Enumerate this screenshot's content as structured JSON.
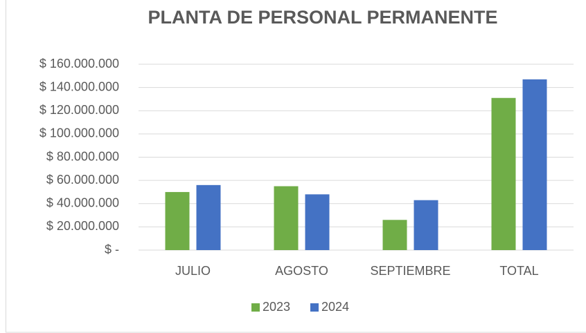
{
  "chart_data": {
    "type": "bar",
    "title": "PLANTA DE PERSONAL PERMANENTE",
    "categories": [
      "JULIO",
      "AGOSTO",
      "SEPTIEMBRE",
      "TOTAL"
    ],
    "series": [
      {
        "name": "2023",
        "color": "#70ad47",
        "values": [
          50000000,
          55000000,
          26000000,
          131000000
        ]
      },
      {
        "name": "2024",
        "color": "#4472c4",
        "values": [
          56000000,
          48000000,
          43000000,
          147000000
        ]
      }
    ],
    "ylim": [
      0,
      160000000
    ],
    "yticks": [
      {
        "value": 0,
        "label": "$ -"
      },
      {
        "value": 20000000,
        "label": "$ 20.000.000"
      },
      {
        "value": 40000000,
        "label": "$ 40.000.000"
      },
      {
        "value": 60000000,
        "label": "$ 60.000.000"
      },
      {
        "value": 80000000,
        "label": "$ 80.000.000"
      },
      {
        "value": 100000000,
        "label": "$ 100.000.000"
      },
      {
        "value": 120000000,
        "label": "$ 120.000.000"
      },
      {
        "value": 140000000,
        "label": "$ 140.000.000"
      },
      {
        "value": 160000000,
        "label": "$ 160.000.000"
      }
    ],
    "grid": true,
    "legend": "bottom"
  }
}
